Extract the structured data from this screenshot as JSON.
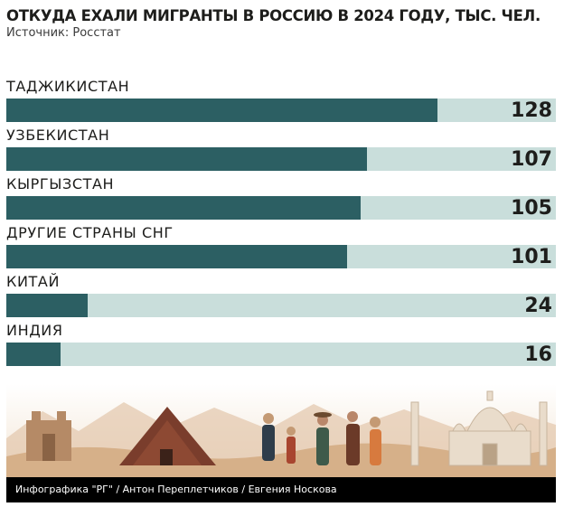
{
  "title": "ОТКУДА ЕХАЛИ МИГРАНТЫ В РОССИЮ В 2024 ГОДУ, ТЫС. ЧЕЛ.",
  "source": "Источник: Росстат",
  "credit": "Инфографика \"РГ\" / Антон Переплетчиков / Евгения Носкова",
  "colors": {
    "bar": "#2c5f63",
    "track": "#c9dedb",
    "text": "#1d1d1b"
  },
  "chart_data": {
    "type": "bar",
    "orientation": "horizontal",
    "title": "ОТКУДА ЕХАЛИ МИГРАНТЫ В РОССИЮ В 2024 ГОДУ, ТЫС. ЧЕЛ.",
    "categories": [
      "ТАДЖИКИСТАН",
      "УЗБЕКИСТАН",
      "КЫРГЫЗСТАН",
      "ДРУГИЕ СТРАНЫ СНГ",
      "КИТАЙ",
      "ИНДИЯ"
    ],
    "values": [
      128,
      107,
      105,
      101,
      24,
      16
    ],
    "value_labels": [
      "128",
      "107",
      "105",
      "101",
      "24",
      "16"
    ],
    "xlim": [
      0,
      163
    ],
    "grid": false
  }
}
